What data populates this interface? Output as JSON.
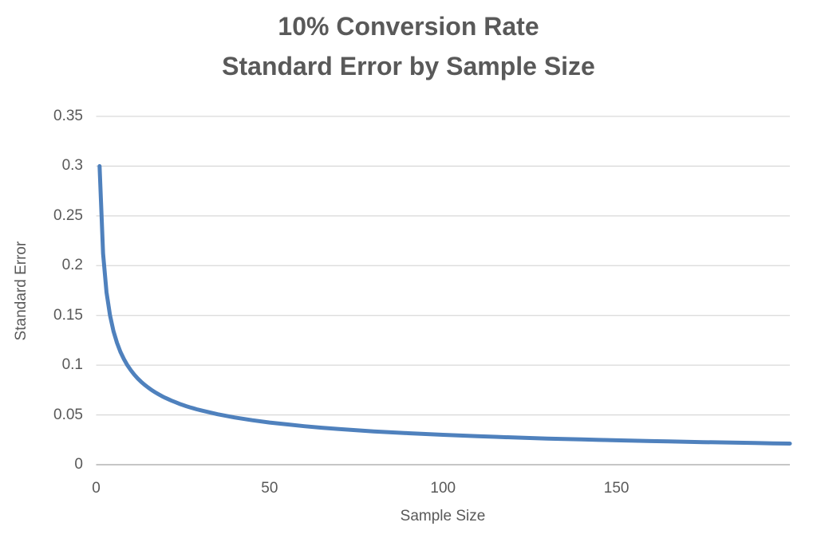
{
  "title": {
    "line1": "10% Conversion Rate",
    "line2": "Standard Error by Sample Size"
  },
  "axes": {
    "y": {
      "title": "Standard Error",
      "tick_values": [
        0,
        0.05,
        0.1,
        0.15,
        0.2,
        0.25,
        0.3,
        0.35
      ],
      "tick_labels": [
        "0",
        "0.05",
        "0.1",
        "0.15",
        "0.2",
        "0.25",
        "0.3",
        "0.35"
      ]
    },
    "x": {
      "title": "Sample Size",
      "tick_values": [
        0,
        50,
        100,
        150
      ],
      "tick_labels": [
        "0",
        "50",
        "100",
        "150"
      ]
    }
  },
  "colors": {
    "line": "#4F81BD",
    "gridline": "#D9D9D9",
    "axis_line": "#C6C6C6",
    "text": "#595959"
  },
  "chart_data": {
    "type": "line",
    "title": "10% Conversion Rate Standard Error by Sample Size",
    "xlabel": "Sample Size",
    "ylabel": "Standard Error",
    "xlim": [
      0,
      200
    ],
    "ylim": [
      0,
      0.35
    ],
    "grid": "horizontal-only",
    "legend_position": "none",
    "series": [
      {
        "name": "Standard Error",
        "x": [
          1,
          2,
          3,
          4,
          5,
          6,
          7,
          8,
          9,
          10,
          11,
          12,
          13,
          14,
          15,
          16,
          17,
          18,
          19,
          20,
          21,
          22,
          23,
          24,
          25,
          26,
          27,
          28,
          29,
          30,
          35,
          40,
          45,
          50,
          55,
          60,
          65,
          70,
          75,
          80,
          85,
          90,
          95,
          100,
          105,
          110,
          115,
          120,
          125,
          130,
          135,
          140,
          145,
          150,
          155,
          160,
          165,
          170,
          175,
          180,
          185,
          190,
          195,
          200
        ],
        "y": [
          0.3,
          0.2121,
          0.1732,
          0.15,
          0.1342,
          0.1225,
          0.1134,
          0.1061,
          0.1,
          0.0949,
          0.0905,
          0.0866,
          0.0832,
          0.0802,
          0.0775,
          0.075,
          0.0728,
          0.0707,
          0.0688,
          0.0671,
          0.0655,
          0.064,
          0.0626,
          0.0612,
          0.06,
          0.0588,
          0.0577,
          0.0567,
          0.0557,
          0.0548,
          0.0507,
          0.0474,
          0.0447,
          0.0424,
          0.0405,
          0.0387,
          0.0372,
          0.0359,
          0.0346,
          0.0335,
          0.0325,
          0.0316,
          0.0308,
          0.03,
          0.0293,
          0.0286,
          0.028,
          0.0274,
          0.0268,
          0.0263,
          0.0258,
          0.0254,
          0.0249,
          0.0245,
          0.0241,
          0.0237,
          0.0234,
          0.023,
          0.0227,
          0.0224,
          0.0221,
          0.0218,
          0.0215,
          0.0212
        ]
      }
    ]
  }
}
